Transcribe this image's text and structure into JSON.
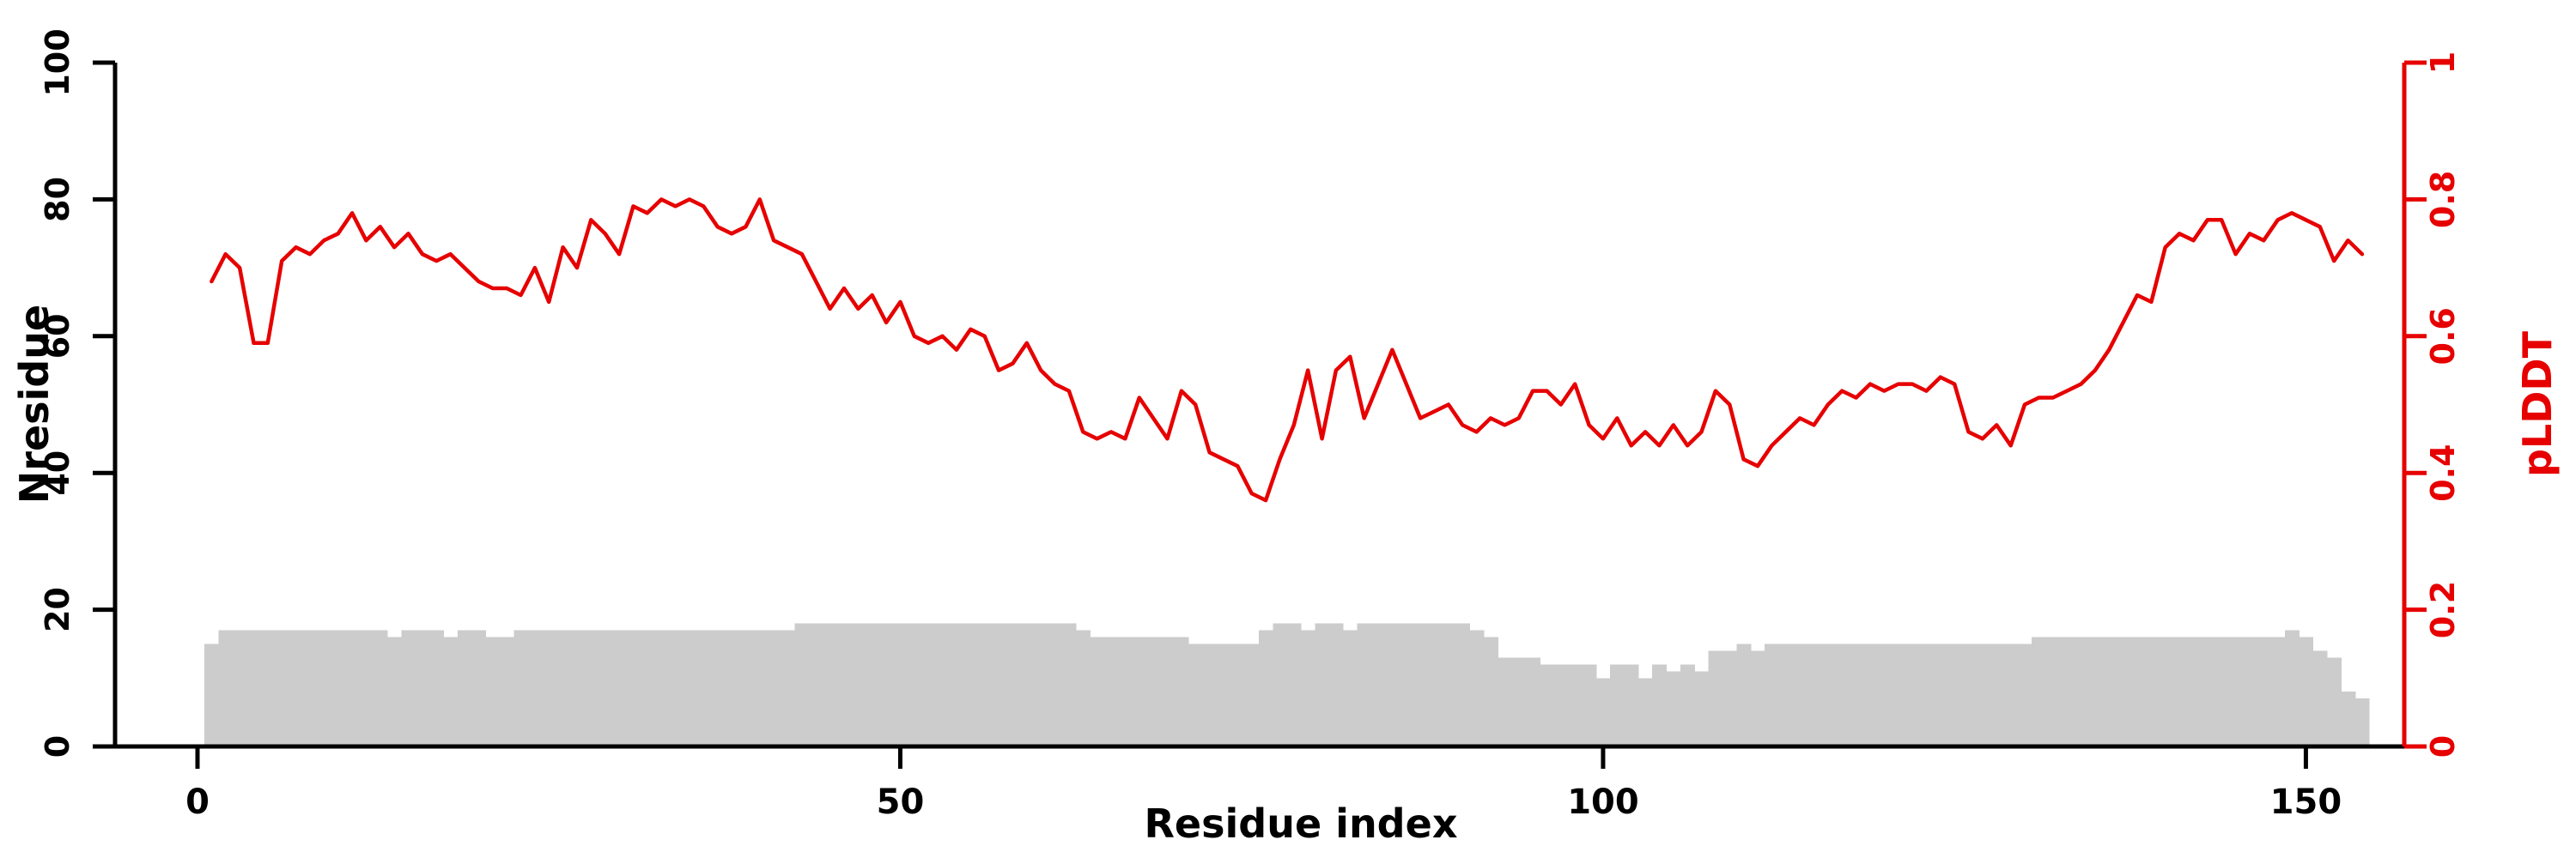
{
  "chart_data": {
    "type": "line",
    "title": "",
    "x_axis": {
      "label": "Residue index",
      "ticks": [
        0,
        50,
        100,
        150
      ],
      "range": [
        0,
        157
      ]
    },
    "left_axis": {
      "label": "Nresidue",
      "ticks": [
        0,
        20,
        40,
        60,
        80,
        100
      ],
      "range": [
        0,
        100
      ],
      "color": "#000000"
    },
    "right_axis": {
      "label": "pLDDT",
      "ticks": [
        0,
        0.2,
        0.4,
        0.6,
        0.8,
        1
      ],
      "range": [
        0,
        1
      ],
      "color": "#e60000"
    },
    "x_start": 1,
    "grid": false,
    "legend": "none",
    "series": [
      {
        "name": "Nresidue",
        "type": "bar",
        "axis": "left",
        "color": "#cccccc",
        "values": [
          15,
          17,
          17,
          17,
          17,
          17,
          17,
          17,
          17,
          17,
          17,
          17,
          17,
          16,
          17,
          17,
          17,
          16,
          17,
          17,
          16,
          16,
          17,
          17,
          17,
          17,
          17,
          17,
          17,
          17,
          17,
          17,
          17,
          17,
          17,
          17,
          17,
          17,
          17,
          17,
          17,
          17,
          18,
          18,
          18,
          18,
          18,
          18,
          18,
          18,
          18,
          18,
          18,
          18,
          18,
          18,
          18,
          18,
          18,
          18,
          18,
          18,
          17,
          16,
          16,
          16,
          16,
          16,
          16,
          16,
          15,
          15,
          15,
          15,
          15,
          17,
          18,
          18,
          17,
          18,
          18,
          17,
          18,
          18,
          18,
          18,
          18,
          18,
          18,
          18,
          17,
          16,
          13,
          13,
          13,
          12,
          12,
          12,
          12,
          10,
          12,
          12,
          10,
          12,
          11,
          12,
          11,
          14,
          14,
          15,
          14,
          15,
          15,
          15,
          15,
          15,
          15,
          15,
          15,
          15,
          15,
          15,
          15,
          15,
          15,
          15,
          15,
          15,
          15,
          15,
          16,
          16,
          16,
          16,
          16,
          16,
          16,
          16,
          16,
          16,
          16,
          16,
          16,
          16,
          16,
          16,
          16,
          16,
          17,
          16,
          14,
          13,
          8,
          7
        ]
      },
      {
        "name": "pLDDT",
        "type": "line",
        "axis": "right",
        "color": "#e60000",
        "values": [
          0.68,
          0.72,
          0.7,
          0.59,
          0.59,
          0.71,
          0.73,
          0.72,
          0.74,
          0.75,
          0.78,
          0.74,
          0.76,
          0.73,
          0.75,
          0.72,
          0.71,
          0.72,
          0.7,
          0.68,
          0.67,
          0.67,
          0.66,
          0.7,
          0.65,
          0.73,
          0.7,
          0.77,
          0.75,
          0.72,
          0.79,
          0.78,
          0.8,
          0.79,
          0.8,
          0.79,
          0.76,
          0.75,
          0.76,
          0.8,
          0.74,
          0.73,
          0.72,
          0.68,
          0.64,
          0.67,
          0.64,
          0.66,
          0.62,
          0.65,
          0.6,
          0.59,
          0.6,
          0.58,
          0.61,
          0.6,
          0.55,
          0.56,
          0.59,
          0.55,
          0.53,
          0.52,
          0.46,
          0.45,
          0.46,
          0.45,
          0.51,
          0.48,
          0.45,
          0.52,
          0.5,
          0.43,
          0.42,
          0.41,
          0.37,
          0.36,
          0.42,
          0.47,
          0.55,
          0.45,
          0.55,
          0.57,
          0.48,
          0.53,
          0.58,
          0.53,
          0.48,
          0.49,
          0.5,
          0.47,
          0.46,
          0.48,
          0.47,
          0.48,
          0.52,
          0.52,
          0.5,
          0.53,
          0.47,
          0.45,
          0.48,
          0.44,
          0.46,
          0.44,
          0.47,
          0.44,
          0.46,
          0.52,
          0.5,
          0.42,
          0.41,
          0.44,
          0.46,
          0.48,
          0.47,
          0.5,
          0.52,
          0.51,
          0.53,
          0.52,
          0.53,
          0.53,
          0.52,
          0.54,
          0.53,
          0.46,
          0.45,
          0.47,
          0.44,
          0.5,
          0.51,
          0.51,
          0.52,
          0.53,
          0.55,
          0.58,
          0.62,
          0.66,
          0.65,
          0.73,
          0.75,
          0.74,
          0.77,
          0.77,
          0.72,
          0.75,
          0.74,
          0.77,
          0.78,
          0.77,
          0.76,
          0.71,
          0.74,
          0.72
        ]
      }
    ]
  }
}
